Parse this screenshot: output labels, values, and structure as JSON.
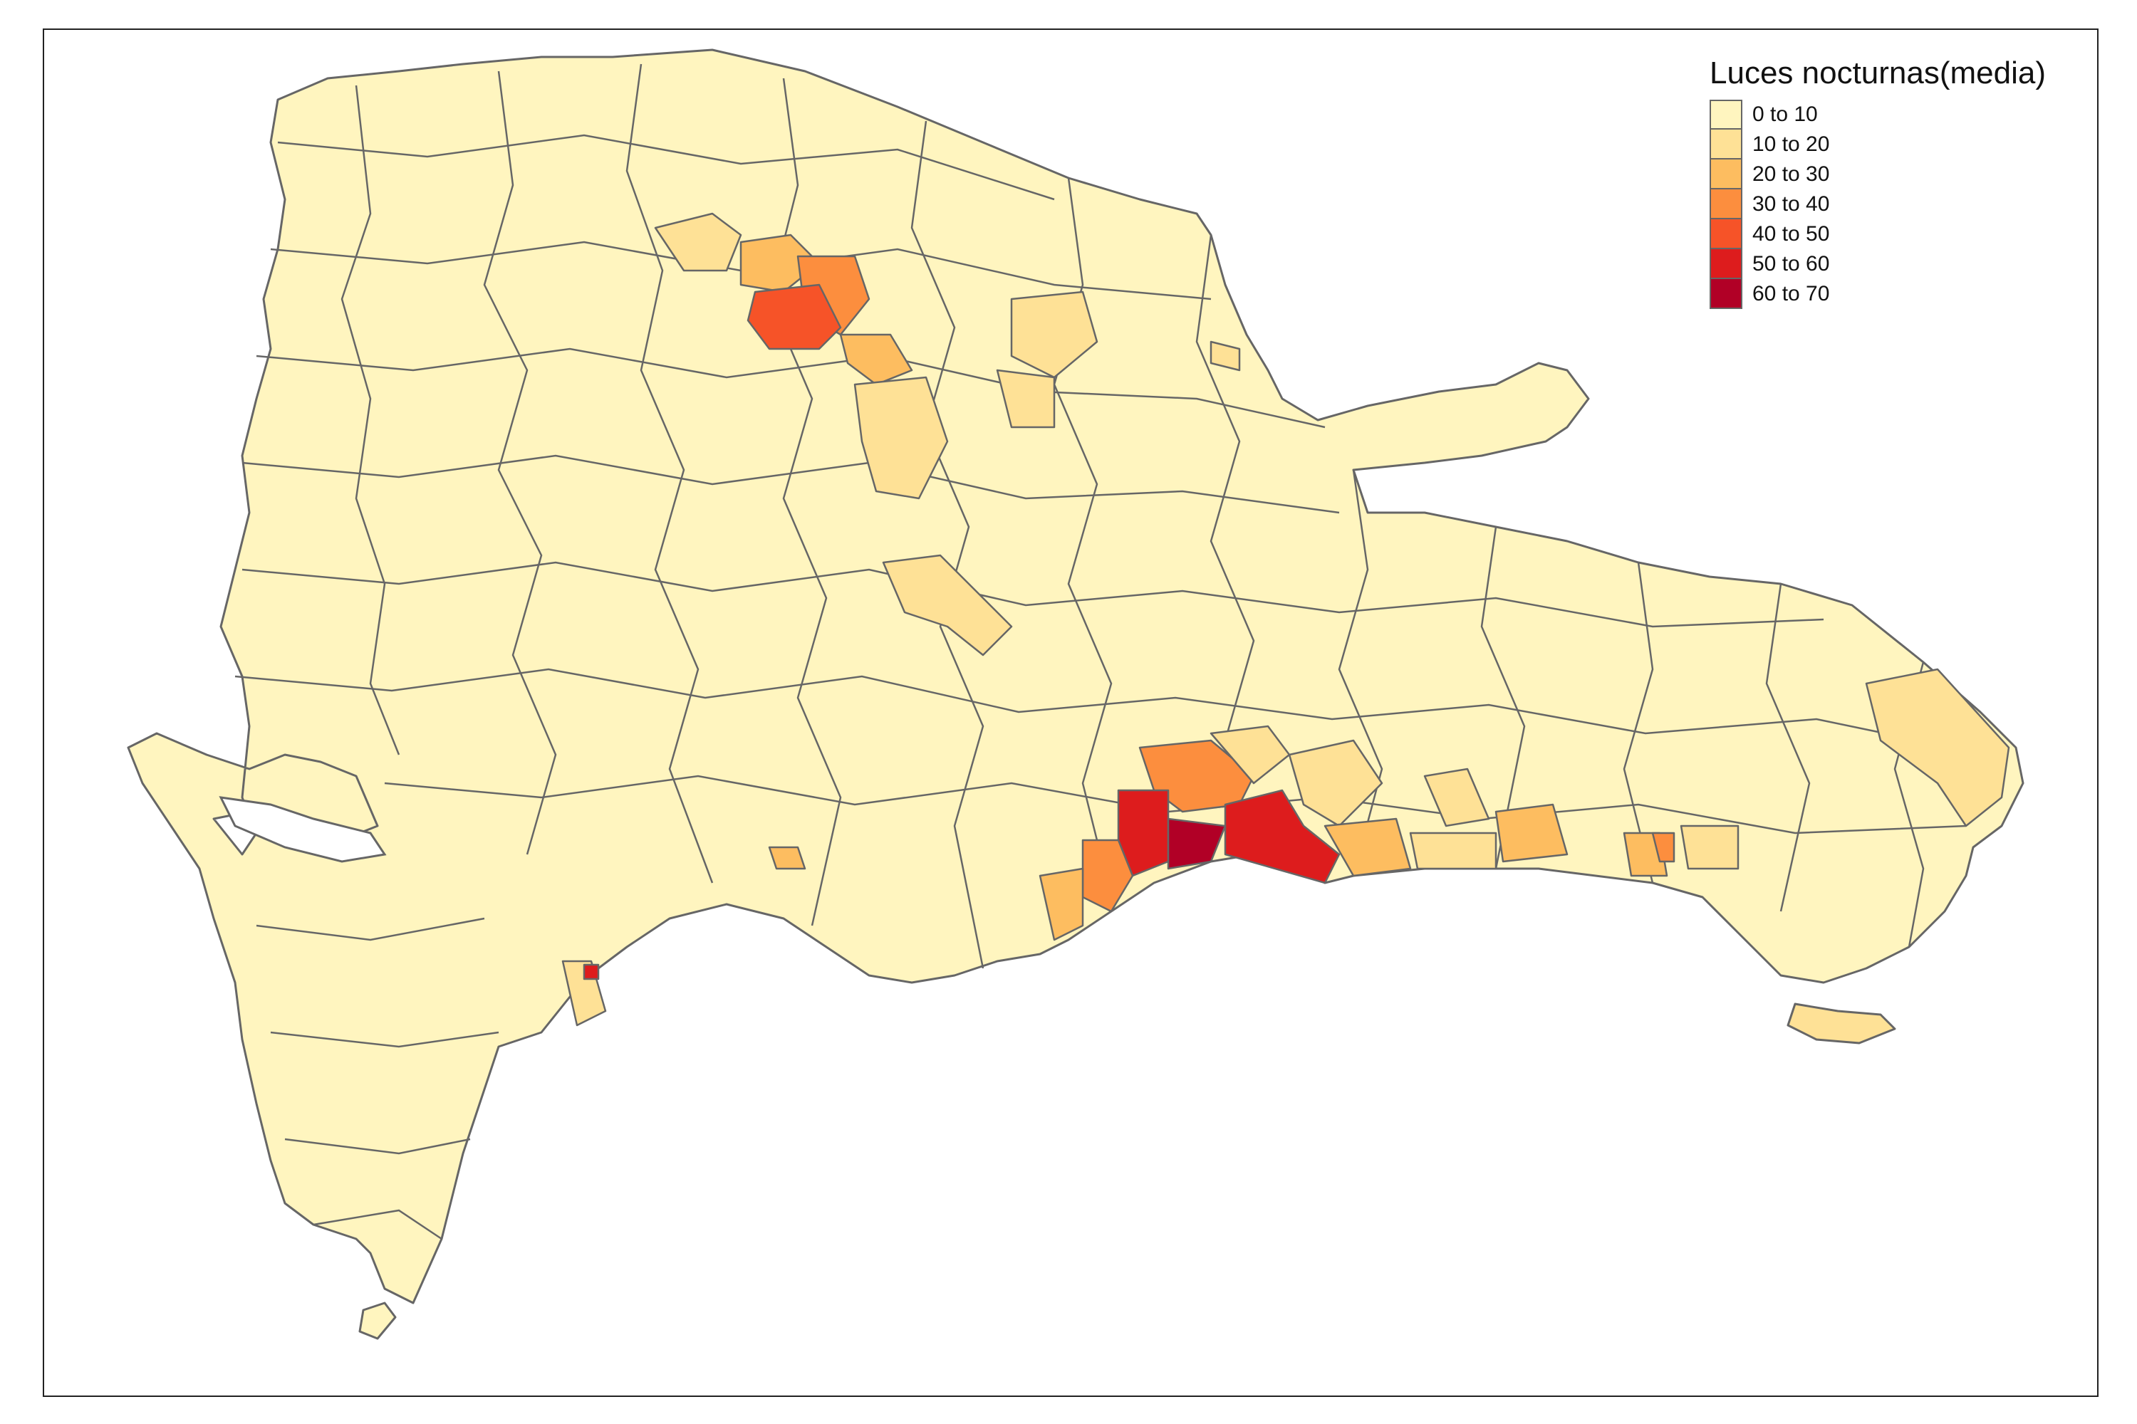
{
  "legend": {
    "title": "Luces nocturnas(media)",
    "classes": [
      {
        "label": "0 to 10",
        "color": "#FFF5BF"
      },
      {
        "label": "10 to 20",
        "color": "#FEE196"
      },
      {
        "label": "20 to 30",
        "color": "#FDBD60"
      },
      {
        "label": "30 to 40",
        "color": "#FC8E3E"
      },
      {
        "label": "40 to 50",
        "color": "#F65328"
      },
      {
        "label": "50 to 60",
        "color": "#DD1C1D"
      },
      {
        "label": "60 to 70",
        "color": "#B10026"
      }
    ]
  },
  "colors": {
    "boundary": "#666666",
    "frame": "#222222",
    "background": "#ffffff"
  }
}
